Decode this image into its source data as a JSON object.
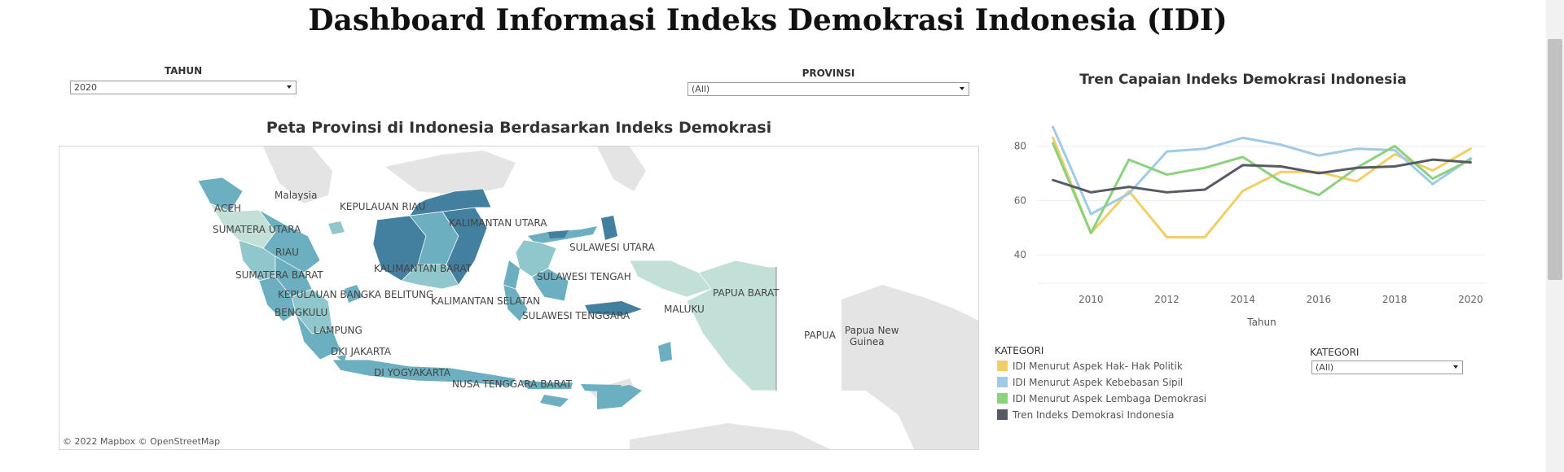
{
  "page": {
    "title": "Dashboard Informasi Indeks Demokrasi Indonesia (IDI)"
  },
  "filters": {
    "year": {
      "label": "TAHUN",
      "value": "2020"
    },
    "province": {
      "label": "PROVINSI",
      "value": "(All)"
    },
    "category": {
      "label": "KATEGORI",
      "value": "(All)"
    }
  },
  "map": {
    "title": "Peta Provinsi di Indonesia Berdasarkan Indeks Demokrasi",
    "attribution": "© 2022 Mapbox  © OpenStreetMap",
    "labels": {
      "malaysia": "Malaysia",
      "aceh": "ACEH",
      "sumut": "SUMATERA UTARA",
      "riau": "RIAU",
      "sumbar": "SUMATERA BARAT",
      "babel": "KEPULAUAN BANGKA BELITUNG",
      "bengkulu": "BENGKULU",
      "lampung": "LAMPUNG",
      "dki": "DKI JAKARTA",
      "diy": "DI YOGYAKARTA",
      "ntb": "NUSA TENGGARA BARAT",
      "kepri": "KEPULAUAN RIAU",
      "kaltara": "KALIMANTAN UTARA",
      "kalbar": "KALIMANTAN BARAT",
      "kalsel": "KALIMANTAN SELATAN",
      "sulut": "SULAWESI UTARA",
      "sulteng": "SULAWESI TENGAH",
      "sultra": "SULAWESI TENGGARA",
      "maluku": "MALUKU",
      "pabar": "PAPUA BARAT",
      "papua": "PAPUA",
      "png": "Papua New\nGuinea"
    },
    "colors": {
      "land": "#e3e3e3",
      "light": "#c3e0d8",
      "mid": "#8fc7cc",
      "med": "#6bafc0",
      "dark": "#4b8aa8",
      "darker": "#437f9f"
    }
  },
  "chart_data": {
    "type": "line",
    "title": "Tren Capaian Indeks Demokrasi Indonesia",
    "xlabel": "Tahun",
    "ylabel": "",
    "x": [
      2009,
      2010,
      2011,
      2012,
      2013,
      2014,
      2015,
      2016,
      2017,
      2018,
      2019,
      2020
    ],
    "xticks": [
      2010,
      2012,
      2014,
      2016,
      2018,
      2020
    ],
    "yticks": [
      40,
      60,
      80
    ],
    "ylim": [
      32,
      90
    ],
    "grid": true,
    "legend_title": "KATEGORI",
    "legend_position": "bottom-left",
    "series": [
      {
        "name": "IDI Menurut Aspek Hak- Hak Politik",
        "color": "#f2cf66",
        "values": [
          83,
          48,
          63.5,
          46.5,
          46.5,
          63.5,
          70.5,
          70.5,
          67,
          77,
          71,
          79
        ]
      },
      {
        "name": "IDI Menurut Aspek Kebebasan Sipil",
        "color": "#a0cbe8",
        "values": [
          87,
          55,
          62.5,
          78,
          79,
          83,
          80.5,
          76.5,
          79,
          78.5,
          66,
          75.5
        ]
      },
      {
        "name": "IDI Menurut Aspek Lembaga Demokrasi",
        "color": "#8cd17d",
        "values": [
          81,
          48,
          75,
          69.5,
          72,
          76,
          67,
          62,
          72,
          80,
          68,
          75
        ]
      },
      {
        "name": "Tren Indeks Demokrasi Indonesia",
        "color": "#555a63",
        "values": [
          67.5,
          63,
          65,
          63,
          64,
          73,
          72.5,
          70,
          72,
          72.5,
          75,
          74
        ]
      }
    ]
  }
}
